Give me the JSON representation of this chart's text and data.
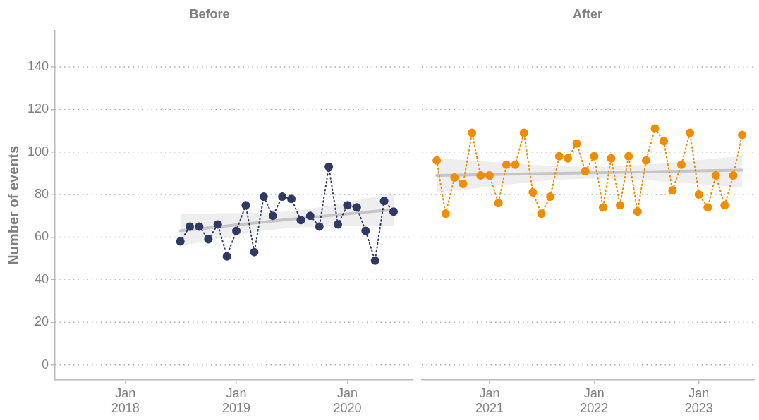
{
  "chart_data": [
    {
      "type": "line",
      "title": "Before",
      "ylabel": "Number of events",
      "xlim": [
        "2017-05-15",
        "2020-08-05"
      ],
      "xticks": [
        {
          "value": "2018-01",
          "label": "Jan 2018"
        },
        {
          "value": "2019-01",
          "label": "Jan 2019"
        },
        {
          "value": "2020-01",
          "label": "Jan 2020"
        }
      ],
      "ylim": [
        -7,
        157
      ],
      "yticks": [
        0,
        20,
        40,
        60,
        80,
        100,
        120,
        140
      ],
      "grid": "y",
      "legend": false,
      "marker": "circle",
      "line_style": "dotted",
      "series": [
        {
          "color": "#2e3a63",
          "x": [
            "2018-07",
            "2018-08",
            "2018-09",
            "2018-10",
            "2018-11",
            "2018-12",
            "2019-01",
            "2019-02",
            "2019-03",
            "2019-04",
            "2019-05",
            "2019-06",
            "2019-07",
            "2019-08",
            "2019-09",
            "2019-10",
            "2019-11",
            "2019-12",
            "2020-01",
            "2020-02",
            "2020-03",
            "2020-04",
            "2020-05",
            "2020-06"
          ],
          "values": [
            58,
            65,
            65,
            59,
            66,
            51,
            63,
            75,
            53,
            79,
            70,
            79,
            78,
            68,
            70,
            65,
            93,
            66,
            75,
            74,
            63,
            49,
            77,
            72
          ]
        },
        {
          "type": "line",
          "color": "#c4c4c4",
          "marker": "none",
          "line_style": "solid",
          "x": [
            "2018-07",
            "2019-06",
            "2020-06"
          ],
          "values": [
            63,
            68,
            73
          ],
          "lower": [
            56,
            64,
            65.5
          ],
          "upper": [
            71,
            72,
            80.5
          ]
        }
      ]
    },
    {
      "type": "line",
      "title": "After",
      "tick_labels": "x",
      "xlim": [
        "2020-05-10",
        "2023-07-15"
      ],
      "xticks": [
        {
          "value": "2021-01",
          "label": "Jan 2021"
        },
        {
          "value": "2022-01",
          "label": "Jan 2022"
        },
        {
          "value": "2023-01",
          "label": "Jan 2023"
        }
      ],
      "yticks": [
        0,
        20,
        40,
        60,
        80,
        100,
        120,
        140
      ],
      "grid": "y",
      "legend": false,
      "marker": "circle",
      "line_style": "dotted",
      "series": [
        {
          "color": "#f08c00",
          "x": [
            "2020-07",
            "2020-08",
            "2020-09",
            "2020-10",
            "2020-11",
            "2020-12",
            "2021-01",
            "2021-02",
            "2021-03",
            "2021-04",
            "2021-05",
            "2021-06",
            "2021-07",
            "2021-08",
            "2021-09",
            "2021-10",
            "2021-11",
            "2021-12",
            "2022-01",
            "2022-02",
            "2022-03",
            "2022-04",
            "2022-05",
            "2022-06",
            "2022-07",
            "2022-08",
            "2022-09",
            "2022-10",
            "2022-11",
            "2022-12",
            "2023-01",
            "2023-02",
            "2023-03",
            "2023-04",
            "2023-05",
            "2023-06"
          ],
          "values": [
            96,
            71,
            88,
            85,
            109,
            89,
            89,
            76,
            94,
            94,
            109,
            81,
            71,
            79,
            98,
            97,
            104,
            91,
            98,
            74,
            97,
            75,
            98,
            72,
            96,
            111,
            105,
            82,
            94,
            109,
            80,
            74,
            89,
            75,
            89,
            108
          ]
        },
        {
          "type": "line",
          "color": "#c4c4c4",
          "marker": "none",
          "line_style": "solid",
          "x": [
            "2020-07",
            "2022-01",
            "2023-06"
          ],
          "values": [
            89,
            90.2,
            91.5
          ],
          "lower": [
            81,
            87.5,
            83.5
          ],
          "upper": [
            97,
            93,
            98
          ]
        }
      ]
    }
  ]
}
